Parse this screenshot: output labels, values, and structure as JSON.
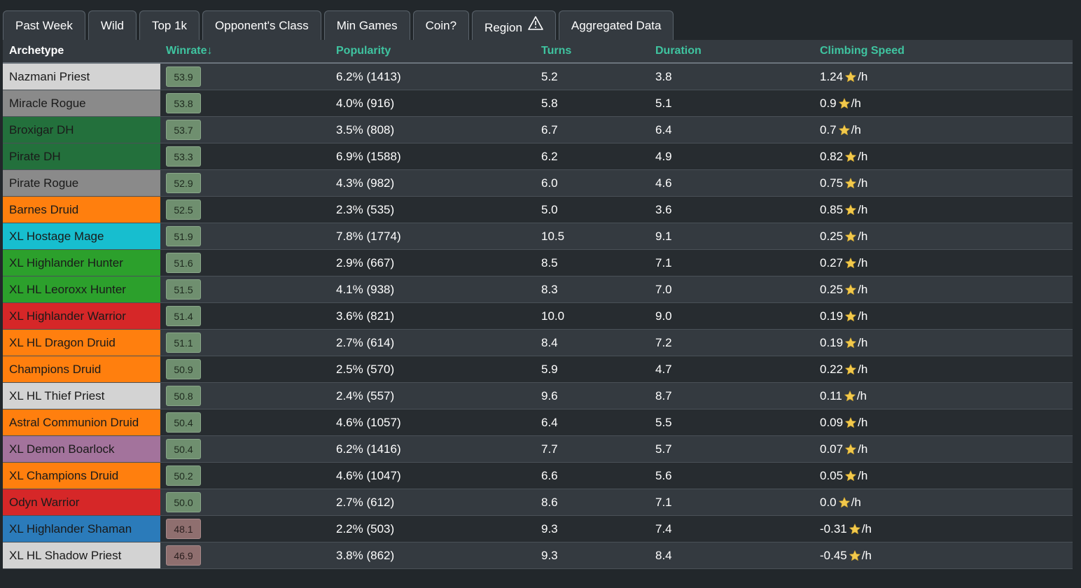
{
  "filters": [
    {
      "label": "Past Week"
    },
    {
      "label": "Wild"
    },
    {
      "label": "Top 1k"
    },
    {
      "label": "Opponent's Class"
    },
    {
      "label": "Min Games"
    },
    {
      "label": "Coin?"
    },
    {
      "label": "Region",
      "icon": "warning-icon"
    },
    {
      "label": "Aggregated Data"
    }
  ],
  "table": {
    "headers": {
      "archetype": "Archetype",
      "winrate": "Winrate↓",
      "popularity": "Popularity",
      "turns": "Turns",
      "duration": "Duration",
      "climbing": "Climbing Speed"
    },
    "rows": [
      {
        "archetype": "Nazmani Priest",
        "class_color": "#d3d3d3",
        "winrate": "53.9",
        "popularity": "6.2% (1413)",
        "turns": "5.2",
        "duration": "3.8",
        "climbing": "1.24",
        "unit": "/h"
      },
      {
        "archetype": "Miracle Rogue",
        "class_color": "#8a8a8a",
        "winrate": "53.8",
        "popularity": "4.0% (916)",
        "turns": "5.8",
        "duration": "5.1",
        "climbing": "0.9",
        "unit": "/h"
      },
      {
        "archetype": "Broxigar DH",
        "class_color": "#23703c",
        "winrate": "53.7",
        "popularity": "3.5% (808)",
        "turns": "6.7",
        "duration": "6.4",
        "climbing": "0.7",
        "unit": "/h"
      },
      {
        "archetype": "Pirate DH",
        "class_color": "#23703c",
        "winrate": "53.3",
        "popularity": "6.9% (1588)",
        "turns": "6.2",
        "duration": "4.9",
        "climbing": "0.82",
        "unit": "/h"
      },
      {
        "archetype": "Pirate Rogue",
        "class_color": "#8a8a8a",
        "winrate": "52.9",
        "popularity": "4.3% (982)",
        "turns": "6.0",
        "duration": "4.6",
        "climbing": "0.75",
        "unit": "/h"
      },
      {
        "archetype": "Barnes Druid",
        "class_color": "#ff7f0e",
        "winrate": "52.5",
        "popularity": "2.3% (535)",
        "turns": "5.0",
        "duration": "3.6",
        "climbing": "0.85",
        "unit": "/h"
      },
      {
        "archetype": "XL Hostage Mage",
        "class_color": "#17becf",
        "winrate": "51.9",
        "popularity": "7.8% (1774)",
        "turns": "10.5",
        "duration": "9.1",
        "climbing": "0.25",
        "unit": "/h"
      },
      {
        "archetype": "XL Highlander Hunter",
        "class_color": "#2ca02c",
        "winrate": "51.6",
        "popularity": "2.9% (667)",
        "turns": "8.5",
        "duration": "7.1",
        "climbing": "0.27",
        "unit": "/h"
      },
      {
        "archetype": "XL HL Leoroxx Hunter",
        "class_color": "#2ca02c",
        "winrate": "51.5",
        "popularity": "4.1% (938)",
        "turns": "8.3",
        "duration": "7.0",
        "climbing": "0.25",
        "unit": "/h"
      },
      {
        "archetype": "XL Highlander Warrior",
        "class_color": "#d62728",
        "winrate": "51.4",
        "popularity": "3.6% (821)",
        "turns": "10.0",
        "duration": "9.0",
        "climbing": "0.19",
        "unit": "/h"
      },
      {
        "archetype": "XL HL Dragon Druid",
        "class_color": "#ff7f0e",
        "winrate": "51.1",
        "popularity": "2.7% (614)",
        "turns": "8.4",
        "duration": "7.2",
        "climbing": "0.19",
        "unit": "/h"
      },
      {
        "archetype": "Champions Druid",
        "class_color": "#ff7f0e",
        "winrate": "50.9",
        "popularity": "2.5% (570)",
        "turns": "5.9",
        "duration": "4.7",
        "climbing": "0.22",
        "unit": "/h"
      },
      {
        "archetype": "XL HL Thief Priest",
        "class_color": "#d3d3d3",
        "winrate": "50.8",
        "popularity": "2.4% (557)",
        "turns": "9.6",
        "duration": "8.7",
        "climbing": "0.11",
        "unit": "/h"
      },
      {
        "archetype": "Astral Communion Druid",
        "class_color": "#ff7f0e",
        "winrate": "50.4",
        "popularity": "4.6% (1057)",
        "turns": "6.4",
        "duration": "5.5",
        "climbing": "0.09",
        "unit": "/h"
      },
      {
        "archetype": "XL Demon Boarlock",
        "class_color": "#a3739c",
        "winrate": "50.4",
        "popularity": "6.2% (1416)",
        "turns": "7.7",
        "duration": "5.7",
        "climbing": "0.07",
        "unit": "/h"
      },
      {
        "archetype": "XL Champions Druid",
        "class_color": "#ff7f0e",
        "winrate": "50.2",
        "popularity": "4.6% (1047)",
        "turns": "6.6",
        "duration": "5.6",
        "climbing": "0.05",
        "unit": "/h"
      },
      {
        "archetype": "Odyn Warrior",
        "class_color": "#d62728",
        "winrate": "50.0",
        "popularity": "2.7% (612)",
        "turns": "8.6",
        "duration": "7.1",
        "climbing": "0.0",
        "unit": "/h"
      },
      {
        "archetype": "XL Highlander Shaman",
        "class_color": "#2b7bba",
        "winrate": "48.1",
        "popularity": "2.2% (503)",
        "turns": "9.3",
        "duration": "7.4",
        "climbing": "-0.31",
        "unit": "/h"
      },
      {
        "archetype": "XL HL Shadow Priest",
        "class_color": "#d3d3d3",
        "winrate": "46.9",
        "popularity": "3.8% (862)",
        "turns": "9.3",
        "duration": "8.4",
        "climbing": "-0.45",
        "unit": "/h"
      }
    ]
  },
  "colors": {
    "header_link": "#3fc4a0",
    "winrate_high": "#6f8f6f",
    "winrate_low": "#8f6f6f",
    "star": "#f2c94c"
  }
}
